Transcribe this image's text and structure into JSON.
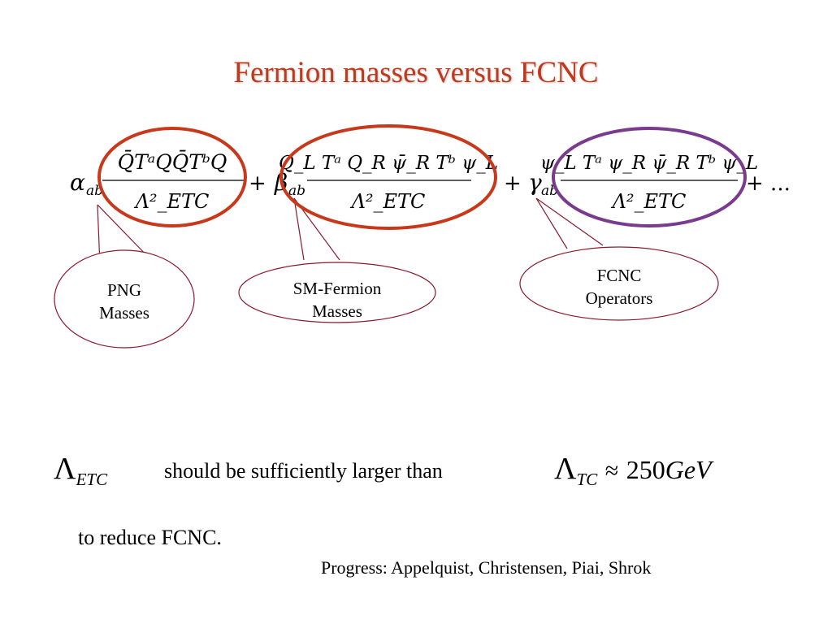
{
  "title": "Fermion masses versus FCNC",
  "equation": {
    "coef1": "α",
    "coef1_sub": "ab",
    "term1_num": "Q̄TᵃQQ̄TᵇQ",
    "term2_coef": "β",
    "term2_coef_sub": "ab",
    "term2_num": "Q_L Tᵃ Q_R ψ̄_R Tᵇ ψ_L",
    "term3_coef": "γ",
    "term3_coef_sub": "ab",
    "term3_num": "ψ_L Tᵃ ψ_R ψ̄_R Tᵇ ψ_L",
    "denominator": "Λ²_ETC",
    "plus": "+",
    "ellipsis": "+ ..."
  },
  "callouts": {
    "png_line1": "PNG",
    "png_line2": "Masses",
    "sm_line1": "SM-Fermion",
    "sm_line2": "Masses",
    "fcnc_line1": "FCNC",
    "fcnc_line2": "Operators"
  },
  "statement": {
    "lambda_symbol": "Λ",
    "lambda_sub": "ETC",
    "text": "should be sufficiently larger than",
    "lambda_tc_sub": "TC",
    "approx": "≈",
    "value": "250",
    "unit": "GeV",
    "line2": "to reduce FCNC."
  },
  "citation": "Progress: Appelquist, Christensen, Piai, Shrok",
  "colors": {
    "title": "#c0391b",
    "circle_red": "#c8391b",
    "circle_purple": "#7a3a8e",
    "callout_border": "#8b1a2e"
  }
}
